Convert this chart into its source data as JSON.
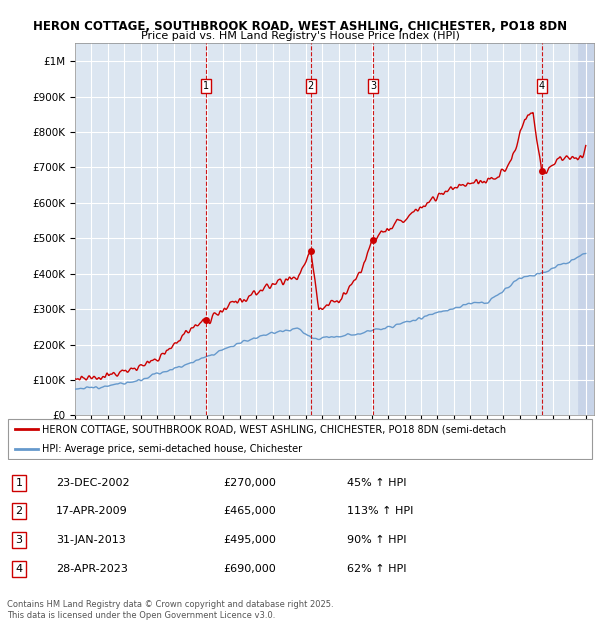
{
  "title1": "HERON COTTAGE, SOUTHBROOK ROAD, WEST ASHLING, CHICHESTER, PO18 8DN",
  "title2": "Price paid vs. HM Land Registry's House Price Index (HPI)",
  "ylabel_ticks": [
    "£0",
    "£100K",
    "£200K",
    "£300K",
    "£400K",
    "£500K",
    "£600K",
    "£700K",
    "£800K",
    "£900K",
    "£1M"
  ],
  "ytick_vals": [
    0,
    100000,
    200000,
    300000,
    400000,
    500000,
    600000,
    700000,
    800000,
    900000,
    1000000
  ],
  "xlim_start": 1995.0,
  "xlim_end": 2026.5,
  "ylim_max": 1050000,
  "background_color": "#dce6f1",
  "grid_color": "#ffffff",
  "red_line_color": "#cc0000",
  "blue_line_color": "#6699cc",
  "sale_markers": [
    {
      "year": 2002.98,
      "price": 270000,
      "label": "1"
    },
    {
      "year": 2009.3,
      "price": 465000,
      "label": "2"
    },
    {
      "year": 2013.08,
      "price": 495000,
      "label": "3"
    },
    {
      "year": 2023.33,
      "price": 690000,
      "label": "4"
    }
  ],
  "footer_text": "Contains HM Land Registry data © Crown copyright and database right 2025.\nThis data is licensed under the Open Government Licence v3.0.",
  "legend_line1": "HERON COTTAGE, SOUTHBROOK ROAD, WEST ASHLING, CHICHESTER, PO18 8DN (semi-detach",
  "legend_line2": "HPI: Average price, semi-detached house, Chichester",
  "table_rows": [
    {
      "num": "1",
      "date": "23-DEC-2002",
      "price": "£270,000",
      "pct": "45% ↑ HPI"
    },
    {
      "num": "2",
      "date": "17-APR-2009",
      "price": "£465,000",
      "pct": "113% ↑ HPI"
    },
    {
      "num": "3",
      "date": "31-JAN-2013",
      "price": "£495,000",
      "pct": "90% ↑ HPI"
    },
    {
      "num": "4",
      "date": "28-APR-2023",
      "price": "£690,000",
      "pct": "62% ↑ HPI"
    }
  ]
}
